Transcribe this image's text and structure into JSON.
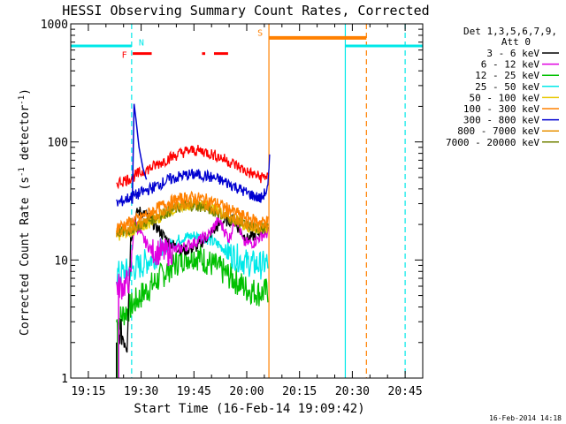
{
  "chart_data": {
    "type": "line",
    "title": "HESSI Observing Summary Count Rates, Corrected",
    "xlabel": "Start Time (16-Feb-14 19:09:42)",
    "ylabel": "Corrected Count Rate (s",
    "ylabel_sup1": "-1",
    "ylabel_mid": " detector",
    "ylabel_sup2": "-1",
    "ylabel_end": ")",
    "yscale": "log",
    "ylim": [
      1,
      1000
    ],
    "yticks": [
      {
        "v": 1,
        "label": "1"
      },
      {
        "v": 10,
        "label": "10"
      },
      {
        "v": 100,
        "label": "100"
      },
      {
        "v": 1000,
        "label": "1000"
      }
    ],
    "xlim": [
      "19:10",
      "20:50"
    ],
    "xlim_minutes": [
      1150,
      1250
    ],
    "xticks": [
      {
        "m": 1155,
        "label": "19:15"
      },
      {
        "m": 1170,
        "label": "19:30"
      },
      {
        "m": 1185,
        "label": "19:45"
      },
      {
        "m": 1200,
        "label": "20:00"
      },
      {
        "m": 1215,
        "label": "20:15"
      },
      {
        "m": 1230,
        "label": "20:30"
      },
      {
        "m": 1245,
        "label": "20:45"
      }
    ],
    "legend_header": [
      "Det 1,3,5,6,7,9,",
      "Att 0"
    ],
    "legend_placement": "top-right outside",
    "footer_date": "16-Feb-2014 14:18",
    "series": [
      {
        "name": "3 - 6 keV",
        "color": "#000000",
        "points": [
          [
            1163,
            1.2
          ],
          [
            1164,
            2.5
          ],
          [
            1166,
            2.0
          ],
          [
            1167,
            15
          ],
          [
            1169,
            26
          ],
          [
            1171,
            25
          ],
          [
            1175,
            18
          ],
          [
            1178,
            14
          ],
          [
            1182,
            12
          ],
          [
            1186,
            13
          ],
          [
            1190,
            17
          ],
          [
            1193,
            21
          ],
          [
            1196,
            22
          ],
          [
            1198,
            18
          ],
          [
            1200,
            15
          ],
          [
            1202,
            16
          ],
          [
            1204,
            17.5
          ],
          [
            1206,
            19
          ]
        ]
      },
      {
        "name": "6 - 12 keV",
        "color": "#e000e0",
        "points": [
          [
            1163,
            6
          ],
          [
            1165,
            6
          ],
          [
            1167,
            7
          ],
          [
            1168,
            22
          ],
          [
            1170,
            16
          ],
          [
            1173,
            12
          ],
          [
            1177,
            11.5
          ],
          [
            1181,
            12.5
          ],
          [
            1185,
            14
          ],
          [
            1189,
            16
          ],
          [
            1192,
            22
          ],
          [
            1195,
            15
          ],
          [
            1197,
            24
          ],
          [
            1199,
            14
          ],
          [
            1202,
            14
          ],
          [
            1204,
            16
          ],
          [
            1206,
            17
          ]
        ]
      },
      {
        "name": "12 - 25 keV",
        "color": "#00c000",
        "points": [
          [
            1163,
            3
          ],
          [
            1165,
            3.5
          ],
          [
            1167,
            4
          ],
          [
            1170,
            5
          ],
          [
            1174,
            6.5
          ],
          [
            1178,
            8.5
          ],
          [
            1182,
            10.5
          ],
          [
            1185,
            11
          ],
          [
            1188,
            10
          ],
          [
            1192,
            8.5
          ],
          [
            1196,
            7
          ],
          [
            1200,
            5.7
          ],
          [
            1204,
            5.2
          ],
          [
            1206,
            5.5
          ]
        ]
      },
      {
        "name": "25 - 50 keV",
        "color": "#00e8e8",
        "points": [
          [
            1163,
            7.5
          ],
          [
            1166,
            8
          ],
          [
            1170,
            9
          ],
          [
            1174,
            11
          ],
          [
            1178,
            13.5
          ],
          [
            1182,
            15.5
          ],
          [
            1185,
            16
          ],
          [
            1188,
            15.5
          ],
          [
            1192,
            13.5
          ],
          [
            1196,
            11
          ],
          [
            1200,
            9.5
          ],
          [
            1204,
            9
          ],
          [
            1206,
            9.5
          ]
        ]
      },
      {
        "name": "50 - 100 keV",
        "color": "#e8c800",
        "points": [
          [
            1163,
            16
          ],
          [
            1166,
            17
          ],
          [
            1170,
            19
          ],
          [
            1174,
            22
          ],
          [
            1178,
            26
          ],
          [
            1182,
            29
          ],
          [
            1185,
            30
          ],
          [
            1188,
            29
          ],
          [
            1192,
            26
          ],
          [
            1196,
            22
          ],
          [
            1200,
            19
          ],
          [
            1204,
            18
          ],
          [
            1206,
            18.5
          ]
        ]
      },
      {
        "name": "100 - 300 keV",
        "color": "#ff8000",
        "points": [
          [
            1163,
            19
          ],
          [
            1166,
            20.5
          ],
          [
            1170,
            23
          ],
          [
            1174,
            27
          ],
          [
            1178,
            31
          ],
          [
            1182,
            33.5
          ],
          [
            1185,
            34
          ],
          [
            1188,
            33
          ],
          [
            1192,
            30
          ],
          [
            1196,
            26
          ],
          [
            1200,
            23
          ],
          [
            1204,
            21
          ],
          [
            1206,
            21.5
          ]
        ]
      },
      {
        "name": "300 - 800 keV",
        "color": "#0000d0",
        "points": [
          [
            1163,
            30
          ],
          [
            1166,
            33
          ],
          [
            1170,
            37
          ],
          [
            1174,
            42
          ],
          [
            1178,
            48
          ],
          [
            1182,
            52
          ],
          [
            1185,
            53
          ],
          [
            1188,
            52
          ],
          [
            1192,
            48
          ],
          [
            1196,
            43
          ],
          [
            1200,
            37
          ],
          [
            1204,
            33
          ],
          [
            1206,
            40
          ],
          [
            1206.5,
            70
          ]
        ]
      },
      {
        "name": "800 - 7000 keV",
        "color": "#e89000",
        "points": [
          [
            1163,
            17
          ],
          [
            1166,
            18
          ],
          [
            1170,
            20.5
          ],
          [
            1174,
            24
          ],
          [
            1178,
            27.5
          ],
          [
            1182,
            30
          ],
          [
            1185,
            30.5
          ],
          [
            1188,
            29.5
          ],
          [
            1192,
            26.5
          ],
          [
            1196,
            23
          ],
          [
            1200,
            20
          ],
          [
            1204,
            19
          ],
          [
            1206,
            19.5
          ]
        ]
      },
      {
        "name": "7000 - 20000 keV",
        "color": "#708000",
        "points": [
          [
            1163,
            17
          ],
          [
            1166,
            17.5
          ],
          [
            1170,
            20
          ],
          [
            1174,
            23
          ],
          [
            1178,
            26
          ],
          [
            1182,
            28.5
          ],
          [
            1185,
            29
          ],
          [
            1188,
            28
          ],
          [
            1192,
            25
          ],
          [
            1196,
            22
          ],
          [
            1200,
            19.5
          ],
          [
            1204,
            18.5
          ],
          [
            1206,
            19
          ]
        ]
      },
      {
        "name": "",
        "color": "#ff0000",
        "points": [
          [
            1163,
            45
          ],
          [
            1166,
            48
          ],
          [
            1170,
            55
          ],
          [
            1174,
            63
          ],
          [
            1178,
            73
          ],
          [
            1182,
            82
          ],
          [
            1185,
            85
          ],
          [
            1188,
            83
          ],
          [
            1192,
            75
          ],
          [
            1196,
            66
          ],
          [
            1200,
            56
          ],
          [
            1204,
            50
          ],
          [
            1206,
            52
          ]
        ]
      }
    ],
    "spike": {
      "color": "#0000d0",
      "points": [
        [
          1167.5,
          30
        ],
        [
          1168,
          210
        ],
        [
          1168.6,
          150
        ],
        [
          1169.4,
          90
        ],
        [
          1170.5,
          60
        ],
        [
          1171.5,
          48
        ]
      ]
    },
    "rise_lines": [
      {
        "color": "#000000",
        "m": 1163,
        "from": 1,
        "to": 2
      },
      {
        "color": "#00c000",
        "m": 1163.3,
        "from": 1,
        "to": 3
      },
      {
        "color": "#e000e0",
        "m": 1163.6,
        "from": 1,
        "to": 6
      }
    ],
    "annotations": {
      "flags": [
        {
          "label": "F",
          "color": "#ff0000",
          "m": 1167.0,
          "value": 550
        },
        {
          "label": "N",
          "color": "#00e8e8",
          "m": 1168.8,
          "value": 700
        },
        {
          "label": "S",
          "color": "#ff8000",
          "m": 1206.3,
          "value": 850
        }
      ],
      "flare_bars": [
        {
          "from": 1167.6,
          "to": 1173.0,
          "value": 560,
          "color": "#ff0000"
        },
        {
          "from": 1187.3,
          "to": 1188.2,
          "value": 560,
          "color": "#ff0000"
        },
        {
          "from": 1190.7,
          "to": 1194.7,
          "value": 560,
          "color": "#ff0000"
        }
      ],
      "night_bars": [
        {
          "from": 1150,
          "to": 1167.3,
          "value": 650,
          "color": "#00e8e8"
        },
        {
          "from": 1228.0,
          "to": 1250,
          "value": 650,
          "color": "#00e8e8"
        }
      ],
      "saa_bar": {
        "from": 1206.3,
        "to": 1234.0,
        "value": 760,
        "color": "#ff8000"
      },
      "vlines": [
        {
          "m": 1167.3,
          "color": "#00e8e8",
          "style": "dashed"
        },
        {
          "m": 1206.3,
          "color": "#ff8000",
          "style": "solid"
        },
        {
          "m": 1228.0,
          "color": "#00e8e8",
          "style": "solid"
        },
        {
          "m": 1234.0,
          "color": "#ff8000",
          "style": "dashed"
        },
        {
          "m": 1245.0,
          "color": "#00e8e8",
          "style": "dashed"
        }
      ]
    }
  }
}
